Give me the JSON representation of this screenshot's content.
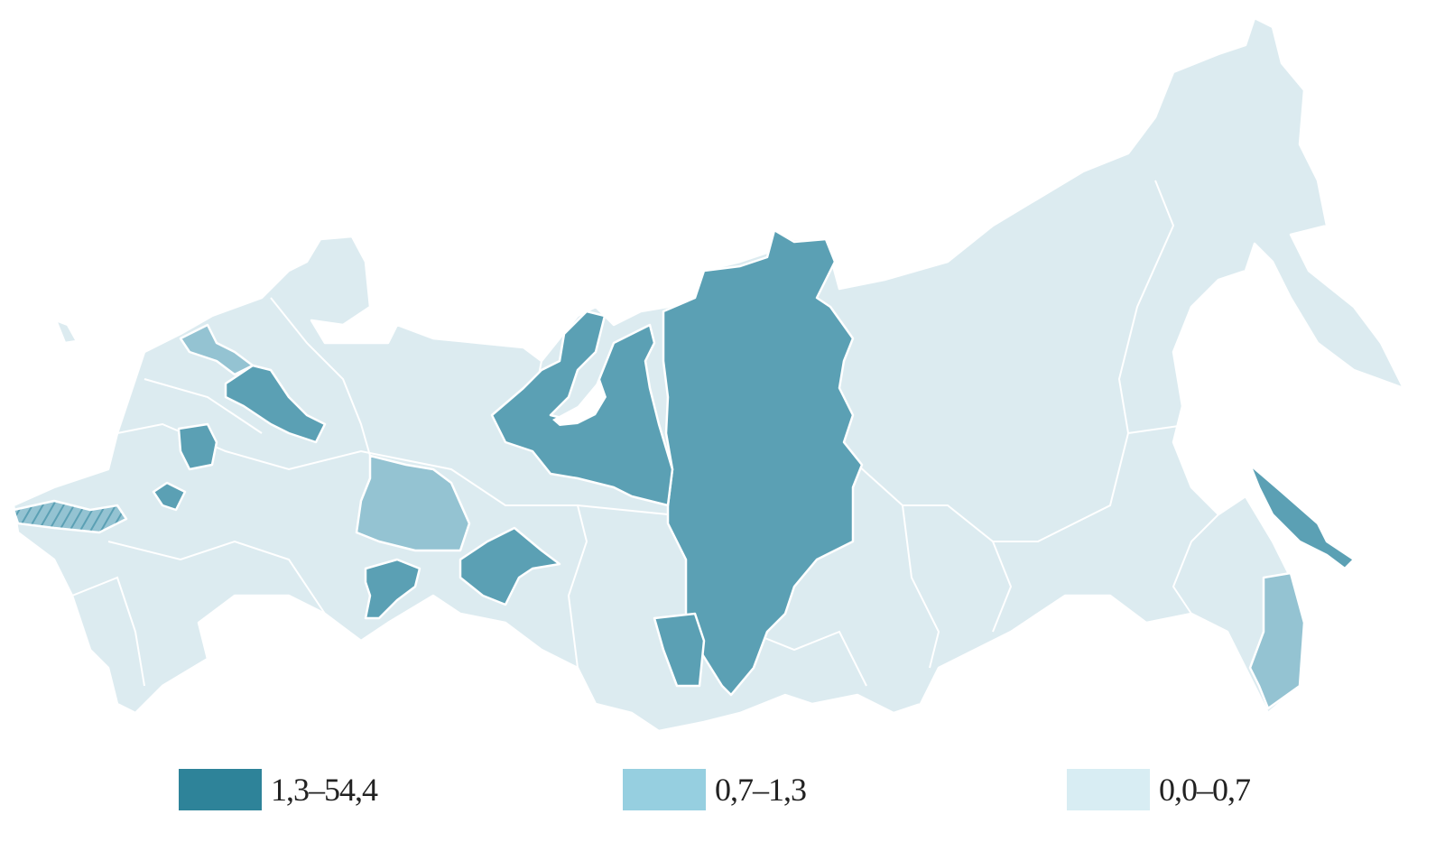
{
  "map": {
    "type": "choropleth",
    "border_color": "#ffffff",
    "legend": [
      {
        "label": "1,3–54,4",
        "color": "#2e8399",
        "map_color": "#5ba0b4"
      },
      {
        "label": "0,7–1,3",
        "color": "#96cfe0",
        "map_color": "#94c3d2"
      },
      {
        "label": "0,0–0,7",
        "color": "#d8edf3",
        "map_color": "#dcebf0"
      }
    ]
  }
}
